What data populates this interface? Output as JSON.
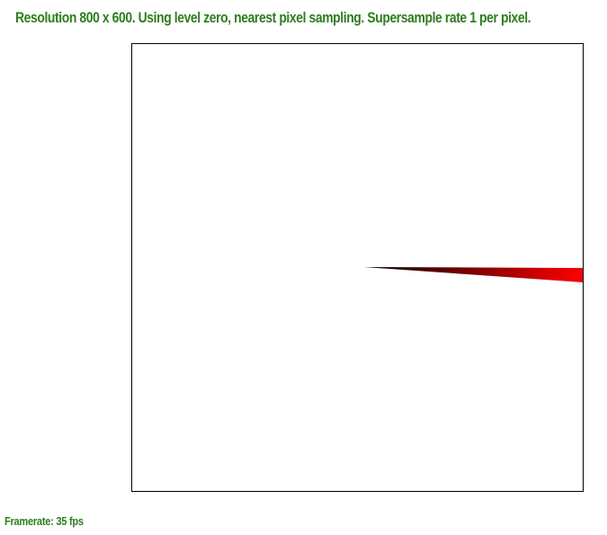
{
  "status": {
    "text": "Resolution 800 x 600. Using level zero, nearest pixel sampling. Supersample rate 1 per pixel."
  },
  "framerate": {
    "text": "Framerate: 35 fps"
  },
  "colors": {
    "text_green": "#2e7d1f",
    "triangle_start": "#000000",
    "triangle_end": "#ff0000",
    "frame_border": "#000000",
    "background": "#ffffff"
  }
}
